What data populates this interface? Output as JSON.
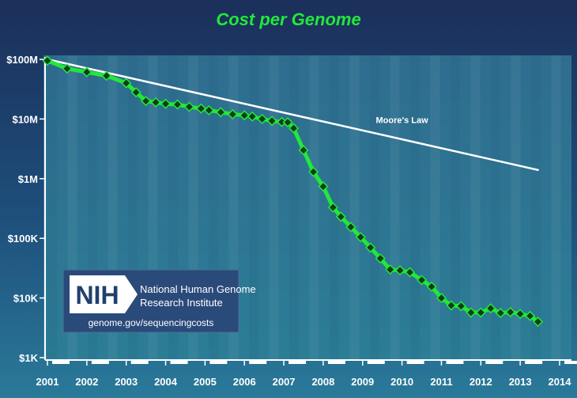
{
  "chart_data": {
    "type": "line",
    "title": "Cost per Genome",
    "xlabel": "",
    "ylabel": "",
    "y_scale": "log",
    "ylim": [
      1000,
      100000000
    ],
    "xlim": [
      2001,
      2014
    ],
    "y_ticks": [
      {
        "value": 100000000,
        "label": "$100M"
      },
      {
        "value": 10000000,
        "label": "$10M"
      },
      {
        "value": 1000000,
        "label": "$1M"
      },
      {
        "value": 100000,
        "label": "$100K"
      },
      {
        "value": 10000,
        "label": "$10K"
      },
      {
        "value": 1000,
        "label": "$1K"
      }
    ],
    "x_ticks": [
      "2001",
      "2002",
      "2003",
      "2004",
      "2005",
      "2006",
      "2007",
      "2008",
      "2009",
      "2010",
      "2011",
      "2012",
      "2013",
      "2014"
    ],
    "series": [
      {
        "name": "",
        "color": "#22e83a",
        "marker": "diamond",
        "points": [
          [
            2001.0,
            95000000
          ],
          [
            2001.5,
            70000000
          ],
          [
            2002.0,
            61000000
          ],
          [
            2002.5,
            53000000
          ],
          [
            2003.0,
            40000000
          ],
          [
            2003.25,
            28000000
          ],
          [
            2003.5,
            20000000
          ],
          [
            2003.75,
            19000000
          ],
          [
            2004.0,
            18000000
          ],
          [
            2004.3,
            17500000
          ],
          [
            2004.6,
            16000000
          ],
          [
            2004.9,
            15000000
          ],
          [
            2005.1,
            14000000
          ],
          [
            2005.4,
            13000000
          ],
          [
            2005.7,
            12000000
          ],
          [
            2006.0,
            11500000
          ],
          [
            2006.2,
            11000000
          ],
          [
            2006.45,
            10000000
          ],
          [
            2006.7,
            9300000
          ],
          [
            2006.95,
            8900000
          ],
          [
            2007.1,
            8800000
          ],
          [
            2007.25,
            7000000
          ],
          [
            2007.5,
            3000000
          ],
          [
            2007.75,
            1300000
          ],
          [
            2008.0,
            740000
          ],
          [
            2008.25,
            330000
          ],
          [
            2008.45,
            230000
          ],
          [
            2008.7,
            155000
          ],
          [
            2008.95,
            105000
          ],
          [
            2009.2,
            70000
          ],
          [
            2009.45,
            46000
          ],
          [
            2009.7,
            30000
          ],
          [
            2009.95,
            29000
          ],
          [
            2010.2,
            27000
          ],
          [
            2010.5,
            20000
          ],
          [
            2010.75,
            15500
          ],
          [
            2011.0,
            10000
          ],
          [
            2011.25,
            7500
          ],
          [
            2011.5,
            7300
          ],
          [
            2011.75,
            5700
          ],
          [
            2012.0,
            5700
          ],
          [
            2012.25,
            6700
          ],
          [
            2012.5,
            5600
          ],
          [
            2012.75,
            5800
          ],
          [
            2013.0,
            5400
          ],
          [
            2013.25,
            5000
          ],
          [
            2013.45,
            4000
          ]
        ]
      },
      {
        "name": "Moore's Law",
        "color": "#ffffff",
        "marker": "none",
        "points": [
          [
            2001.0,
            100000000
          ],
          [
            2013.45,
            1400000
          ]
        ]
      }
    ],
    "annotations": [
      {
        "text": "Moore's Law",
        "x": 2010.0,
        "y": 8500000,
        "color": "#ffffff"
      }
    ],
    "grid": false,
    "legend": "none"
  },
  "logo": {
    "abbr": "NIH",
    "name_line1": "National Human Genome",
    "name_line2": "Research Institute",
    "url": "genome.gov/sequencingcosts"
  },
  "colors": {
    "background": "#1a3d63",
    "title": "#22e83a",
    "data_line": "#22e83a",
    "moore_line": "#ffffff"
  }
}
